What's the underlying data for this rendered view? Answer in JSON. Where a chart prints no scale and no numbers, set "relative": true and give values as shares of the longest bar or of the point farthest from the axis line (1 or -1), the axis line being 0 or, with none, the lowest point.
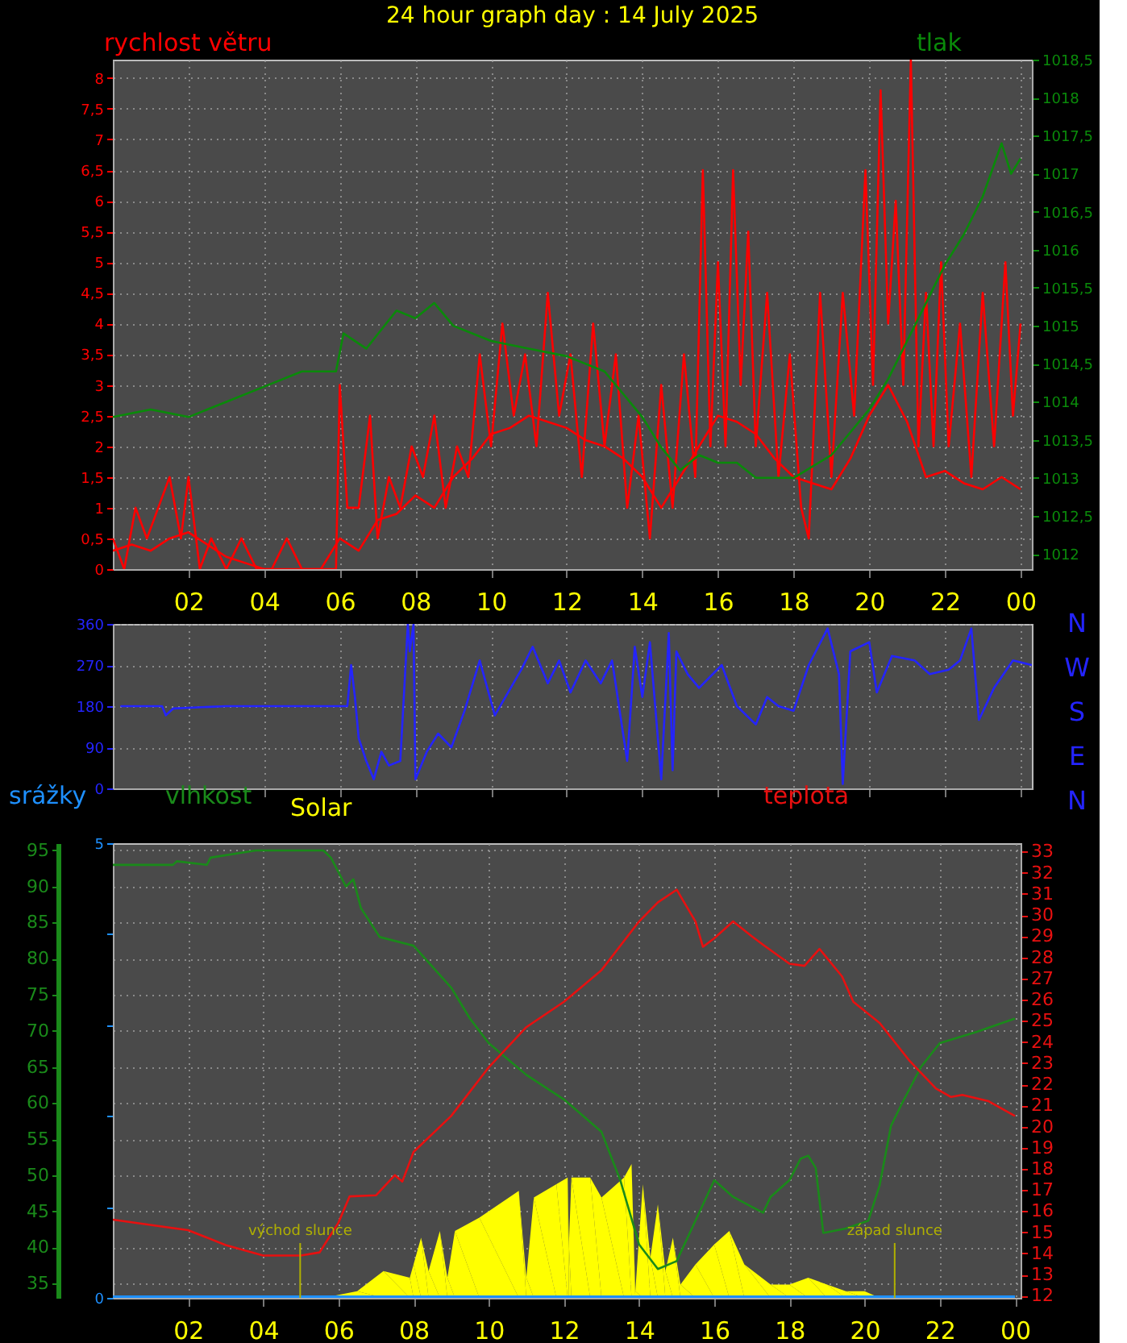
{
  "chart_data": [
    {
      "type": "line",
      "title": "24 hour graph day : 14 July 2025",
      "ylabel": "rychlost větru",
      "y2label": "tlak",
      "grid": true,
      "line_style": "solid",
      "xlim": [
        "2025-07-14T00:00",
        "2025-07-15T00:18"
      ],
      "xticks": [
        {
          "value": "2025-07-14T02:00",
          "label": "02"
        },
        {
          "value": "2025-07-14T04:00",
          "label": "04"
        },
        {
          "value": "2025-07-14T06:00",
          "label": "06"
        },
        {
          "value": "2025-07-14T08:00",
          "label": "08"
        },
        {
          "value": "2025-07-14T10:00",
          "label": "10"
        },
        {
          "value": "2025-07-14T12:00",
          "label": "12"
        },
        {
          "value": "2025-07-14T14:00",
          "label": "14"
        },
        {
          "value": "2025-07-14T16:00",
          "label": "16"
        },
        {
          "value": "2025-07-14T18:00",
          "label": "18"
        },
        {
          "value": "2025-07-14T20:00",
          "label": "20"
        },
        {
          "value": "2025-07-14T22:00",
          "label": "22"
        },
        {
          "value": "2025-07-15T00:00",
          "label": "00"
        }
      ],
      "ylim": [
        0,
        8.3
      ],
      "yticks": [
        0,
        {
          "value": 0.5,
          "label": "0,5"
        },
        1,
        {
          "value": 1.5,
          "label": "1,5"
        },
        2,
        {
          "value": 2.5,
          "label": "2,5"
        },
        3,
        {
          "value": 3.5,
          "label": "3,5"
        },
        4,
        {
          "value": 4.5,
          "label": "4,5"
        },
        5,
        {
          "value": 5.5,
          "label": "5,5"
        },
        6,
        {
          "value": 6.5,
          "label": "6,5"
        },
        7,
        {
          "value": 7.5,
          "label": "7,5"
        },
        8
      ],
      "y2lim": [
        1011.8,
        1018.5
      ],
      "y2ticks": [
        1012,
        {
          "value": 1012.5,
          "label": "1012,5"
        },
        1013,
        {
          "value": 1013.5,
          "label": "1013,5"
        },
        1014,
        {
          "value": 1014.5,
          "label": "1014,5"
        },
        1015,
        {
          "value": 1015.5,
          "label": "1015,5"
        },
        1016,
        {
          "value": 1016.5,
          "label": "1016,5"
        },
        1017,
        {
          "value": 1017.5,
          "label": "1017,5"
        },
        1018,
        {
          "value": 1018.5,
          "label": "1018,5"
        }
      ],
      "series": [
        {
          "color": "#ff0000",
          "x": [
            "2025-07-14T00:00",
            "2025-07-14T00:18",
            "2025-07-14T00:36",
            "2025-07-14T00:54",
            "2025-07-14T01:12",
            "2025-07-14T01:30",
            "2025-07-14T01:48",
            "2025-07-14T02:00",
            "2025-07-14T02:18",
            "2025-07-14T02:36",
            "2025-07-14T03:00",
            "2025-07-14T03:24",
            "2025-07-14T03:48",
            "2025-07-14T04:12",
            "2025-07-14T04:36",
            "2025-07-14T05:00",
            "2025-07-14T05:30",
            "2025-07-14T05:54",
            "2025-07-14T06:00",
            "2025-07-14T06:12",
            "2025-07-14T06:30",
            "2025-07-14T06:48",
            "2025-07-14T07:00",
            "2025-07-14T07:18",
            "2025-07-14T07:36",
            "2025-07-14T07:54",
            "2025-07-14T08:12",
            "2025-07-14T08:30",
            "2025-07-14T08:48",
            "2025-07-14T09:06",
            "2025-07-14T09:24",
            "2025-07-14T09:42",
            "2025-07-14T10:00",
            "2025-07-14T10:18",
            "2025-07-14T10:36",
            "2025-07-14T10:54",
            "2025-07-14T11:12",
            "2025-07-14T11:30",
            "2025-07-14T11:48",
            "2025-07-14T12:06",
            "2025-07-14T12:24",
            "2025-07-14T12:42",
            "2025-07-14T13:00",
            "2025-07-14T13:18",
            "2025-07-14T13:36",
            "2025-07-14T13:54",
            "2025-07-14T14:12",
            "2025-07-14T14:30",
            "2025-07-14T14:48",
            "2025-07-14T15:06",
            "2025-07-14T15:24",
            "2025-07-14T15:36",
            "2025-07-14T15:48",
            "2025-07-14T16:00",
            "2025-07-14T16:12",
            "2025-07-14T16:24",
            "2025-07-14T16:36",
            "2025-07-14T16:48",
            "2025-07-14T17:00",
            "2025-07-14T17:18",
            "2025-07-14T17:36",
            "2025-07-14T17:54",
            "2025-07-14T18:12",
            "2025-07-14T18:24",
            "2025-07-14T18:42",
            "2025-07-14T19:00",
            "2025-07-14T19:18",
            "2025-07-14T19:36",
            "2025-07-14T19:54",
            "2025-07-14T20:06",
            "2025-07-14T20:18",
            "2025-07-14T20:30",
            "2025-07-14T20:42",
            "2025-07-14T20:54",
            "2025-07-14T21:06",
            "2025-07-14T21:18",
            "2025-07-14T21:30",
            "2025-07-14T21:42",
            "2025-07-14T21:54",
            "2025-07-14T22:06",
            "2025-07-14T22:24",
            "2025-07-14T22:42",
            "2025-07-14T23:00",
            "2025-07-14T23:18",
            "2025-07-14T23:36",
            "2025-07-14T23:48",
            "2025-07-15T00:00"
          ],
          "values": [
            0.5,
            0,
            1,
            0.5,
            1,
            1.5,
            0.5,
            1.5,
            0,
            0.5,
            0,
            0.5,
            0,
            0,
            0.5,
            0,
            0,
            0,
            3,
            1,
            1,
            2.5,
            0.5,
            1.5,
            1,
            2,
            1.5,
            2.5,
            1,
            2,
            1.5,
            3.5,
            2,
            4,
            2.5,
            3.5,
            2,
            4.5,
            2.5,
            3.5,
            1.5,
            4,
            2,
            3.5,
            1,
            2.5,
            0.5,
            3,
            1,
            3.5,
            1.5,
            6.5,
            2,
            5,
            2,
            6.5,
            3,
            5.5,
            2,
            4.5,
            1.5,
            3.5,
            1,
            0.5,
            4.5,
            1.5,
            4.5,
            2.5,
            6.5,
            3,
            7.8,
            4,
            6,
            3,
            8.3,
            2,
            4.5,
            2,
            5,
            2,
            4,
            1.5,
            4.5,
            2,
            5,
            2.5,
            4
          ]
        },
        {
          "color": "#ff0000",
          "x": [
            "2025-07-14T00:00",
            "2025-07-14T00:30",
            "2025-07-14T01:00",
            "2025-07-14T01:30",
            "2025-07-14T02:00",
            "2025-07-14T02:30",
            "2025-07-14T03:00",
            "2025-07-14T03:30",
            "2025-07-14T04:00",
            "2025-07-14T04:30",
            "2025-07-14T05:00",
            "2025-07-14T05:30",
            "2025-07-14T06:00",
            "2025-07-14T06:30",
            "2025-07-14T07:00",
            "2025-07-14T07:30",
            "2025-07-14T08:00",
            "2025-07-14T08:30",
            "2025-07-14T09:00",
            "2025-07-14T09:30",
            "2025-07-14T10:00",
            "2025-07-14T10:30",
            "2025-07-14T11:00",
            "2025-07-14T11:30",
            "2025-07-14T12:00",
            "2025-07-14T12:30",
            "2025-07-14T13:00",
            "2025-07-14T13:30",
            "2025-07-14T14:00",
            "2025-07-14T14:30",
            "2025-07-14T15:00",
            "2025-07-14T15:30",
            "2025-07-14T16:00",
            "2025-07-14T16:30",
            "2025-07-14T17:00",
            "2025-07-14T17:30",
            "2025-07-14T18:00",
            "2025-07-14T18:30",
            "2025-07-14T19:00",
            "2025-07-14T19:30",
            "2025-07-14T20:00",
            "2025-07-14T20:30",
            "2025-07-14T21:00",
            "2025-07-14T21:30",
            "2025-07-14T22:00",
            "2025-07-14T22:30",
            "2025-07-14T23:00",
            "2025-07-14T23:30",
            "2025-07-15T00:00"
          ],
          "values": [
            0.3,
            0.4,
            0.3,
            0.5,
            0.6,
            0.4,
            0.2,
            0.1,
            0,
            0,
            0,
            0,
            0.5,
            0.3,
            0.8,
            0.9,
            1.2,
            1.0,
            1.5,
            1.8,
            2.2,
            2.3,
            2.5,
            2.4,
            2.3,
            2.1,
            2.0,
            1.8,
            1.5,
            1.0,
            1.5,
            2.0,
            2.5,
            2.4,
            2.2,
            1.8,
            1.5,
            1.4,
            1.3,
            1.8,
            2.5,
            3.0,
            2.4,
            1.5,
            1.6,
            1.4,
            1.3,
            1.5,
            1.3
          ]
        },
        {
          "color": "#0a8a0a",
          "axis": "y2",
          "x": [
            "2025-07-14T00:00",
            "2025-07-14T01:00",
            "2025-07-14T02:00",
            "2025-07-14T03:00",
            "2025-07-14T04:00",
            "2025-07-14T05:00",
            "2025-07-14T05:30",
            "2025-07-14T05:54",
            "2025-07-14T06:06",
            "2025-07-14T06:42",
            "2025-07-14T07:30",
            "2025-07-14T08:00",
            "2025-07-14T08:30",
            "2025-07-14T09:00",
            "2025-07-14T10:00",
            "2025-07-14T11:00",
            "2025-07-14T12:00",
            "2025-07-14T13:00",
            "2025-07-14T13:30",
            "2025-07-14T14:00",
            "2025-07-14T14:30",
            "2025-07-14T15:00",
            "2025-07-14T15:30",
            "2025-07-14T16:00",
            "2025-07-14T16:30",
            "2025-07-14T17:00",
            "2025-07-14T18:00",
            "2025-07-14T19:00",
            "2025-07-14T19:30",
            "2025-07-14T20:00",
            "2025-07-14T20:30",
            "2025-07-14T21:00",
            "2025-07-14T21:30",
            "2025-07-14T22:00",
            "2025-07-14T22:30",
            "2025-07-14T23:00",
            "2025-07-14T23:30",
            "2025-07-14T23:45",
            "2025-07-15T00:00"
          ],
          "values": [
            1013.8,
            1013.9,
            1013.8,
            1014.0,
            1014.2,
            1014.4,
            1014.4,
            1014.4,
            1014.9,
            1014.7,
            1015.2,
            1015.1,
            1015.3,
            1015.0,
            1014.8,
            1014.7,
            1014.6,
            1014.4,
            1014.1,
            1013.8,
            1013.4,
            1013.1,
            1013.3,
            1013.2,
            1013.2,
            1013.0,
            1013.0,
            1013.3,
            1013.6,
            1013.9,
            1014.3,
            1014.8,
            1015.3,
            1015.8,
            1016.2,
            1016.7,
            1017.4,
            1017.0,
            1017.2
          ]
        }
      ]
    },
    {
      "type": "line",
      "grid": true,
      "tick_labels": "y",
      "line_style": "solid",
      "annotations": [
        "N",
        "W",
        "S",
        "E",
        "N"
      ],
      "xlim": [
        "2025-07-14T00:00",
        "2025-07-15T00:18"
      ],
      "xticks": [
        {
          "value": "2025-07-14T02:00",
          "label": null
        },
        {
          "value": "2025-07-14T04:00",
          "label": null
        },
        {
          "value": "2025-07-14T06:00",
          "label": null
        },
        {
          "value": "2025-07-14T08:00",
          "label": null
        },
        {
          "value": "2025-07-14T10:00",
          "label": null
        },
        {
          "value": "2025-07-14T12:00",
          "label": null
        },
        {
          "value": "2025-07-14T14:00",
          "label": null
        },
        {
          "value": "2025-07-14T16:00",
          "label": null
        },
        {
          "value": "2025-07-14T18:00",
          "label": null
        },
        {
          "value": "2025-07-14T20:00",
          "label": null
        },
        {
          "value": "2025-07-14T22:00",
          "label": null
        },
        {
          "value": "2025-07-15T00:00",
          "label": null
        }
      ],
      "ylim": [
        0,
        360
      ],
      "yticks": [
        0,
        90,
        180,
        270,
        360
      ],
      "series": [
        {
          "color": "#2424ff",
          "x": [
            "2025-07-14T00:12",
            "2025-07-14T01:18",
            "2025-07-14T01:24",
            "2025-07-14T01:36",
            "2025-07-14T03:00",
            "2025-07-14T06:12",
            "2025-07-14T06:18",
            "2025-07-14T06:24",
            "2025-07-14T06:30",
            "2025-07-14T06:42",
            "2025-07-14T06:54",
            "2025-07-14T07:06",
            "2025-07-14T07:18",
            "2025-07-14T07:36",
            "2025-07-14T07:48",
            "2025-07-14T07:51",
            "2025-07-14T07:57",
            "2025-07-14T08:00",
            "2025-07-14T08:18",
            "2025-07-14T08:36",
            "2025-07-14T08:57",
            "2025-07-14T09:18",
            "2025-07-14T09:42",
            "2025-07-14T10:06",
            "2025-07-14T10:48",
            "2025-07-14T11:06",
            "2025-07-14T11:30",
            "2025-07-14T11:48",
            "2025-07-14T12:06",
            "2025-07-14T12:30",
            "2025-07-14T12:54",
            "2025-07-14T13:12",
            "2025-07-14T13:36",
            "2025-07-14T13:48",
            "2025-07-14T14:00",
            "2025-07-14T14:12",
            "2025-07-14T14:30",
            "2025-07-14T14:42",
            "2025-07-14T14:48",
            "2025-07-14T14:54",
            "2025-07-14T15:12",
            "2025-07-14T15:30",
            "2025-07-14T16:06",
            "2025-07-14T16:30",
            "2025-07-14T17:00",
            "2025-07-14T17:18",
            "2025-07-14T17:36",
            "2025-07-14T18:00",
            "2025-07-14T18:24",
            "2025-07-14T18:54",
            "2025-07-14T19:12",
            "2025-07-14T19:18",
            "2025-07-14T19:30",
            "2025-07-14T20:00",
            "2025-07-14T20:12",
            "2025-07-14T20:36",
            "2025-07-14T21:12",
            "2025-07-14T21:36",
            "2025-07-14T22:06",
            "2025-07-14T22:24",
            "2025-07-14T22:42",
            "2025-07-14T22:54",
            "2025-07-14T23:18",
            "2025-07-14T23:48",
            "2025-07-15T00:18"
          ],
          "values": [
            180,
            180,
            160,
            175,
            180,
            180,
            270,
            200,
            110,
            60,
            20,
            80,
            50,
            60,
            360,
            300,
            360,
            20,
            80,
            120,
            90,
            170,
            280,
            160,
            260,
            310,
            230,
            280,
            210,
            280,
            230,
            280,
            60,
            310,
            200,
            320,
            20,
            340,
            40,
            300,
            250,
            220,
            270,
            180,
            140,
            200,
            180,
            170,
            270,
            350,
            250,
            10,
            300,
            320,
            210,
            290,
            280,
            250,
            260,
            280,
            350,
            150,
            220,
            280,
            270
          ]
        }
      ]
    },
    {
      "type": "line",
      "grid": true,
      "line_style": "solid",
      "ylabel": "vlhkost",
      "y2label": "teplota",
      "y3label": "srážky",
      "xlim": [
        "2025-07-14T00:00",
        "2025-07-15T00:09"
      ],
      "xticks": [
        {
          "value": "2025-07-14T02:00",
          "label": "02"
        },
        {
          "value": "2025-07-14T04:00",
          "label": "04"
        },
        {
          "value": "2025-07-14T06:00",
          "label": "06"
        },
        {
          "value": "2025-07-14T08:00",
          "label": "08"
        },
        {
          "value": "2025-07-14T10:00",
          "label": "10"
        },
        {
          "value": "2025-07-14T12:00",
          "label": "12"
        },
        {
          "value": "2025-07-14T14:00",
          "label": "14"
        },
        {
          "value": "2025-07-14T16:00",
          "label": "16"
        },
        {
          "value": "2025-07-14T18:00",
          "label": "18"
        },
        {
          "value": "2025-07-14T20:00",
          "label": "20"
        },
        {
          "value": "2025-07-14T22:00",
          "label": "22"
        },
        {
          "value": "2025-07-15T00:00",
          "label": "00"
        }
      ],
      "ylim": [
        33,
        96
      ],
      "yticks": [
        35,
        40,
        45,
        50,
        55,
        60,
        65,
        70,
        75,
        80,
        85,
        90,
        95
      ],
      "y2lim": [
        11.9,
        33.4
      ],
      "y2ticks": [
        12,
        13,
        14,
        15,
        16,
        17,
        18,
        19,
        20,
        21,
        22,
        23,
        24,
        25,
        26,
        27,
        28,
        29,
        30,
        31,
        32,
        33
      ],
      "y3lim": [
        0,
        5
      ],
      "y3ticks": [
        0,
        {
          "value": 1,
          "label": null
        },
        {
          "value": 2,
          "label": null
        },
        {
          "value": 3,
          "label": null
        },
        {
          "value": 4,
          "label": null
        },
        5
      ],
      "ref_lines": [
        {
          "axis": "x",
          "value": "2025-07-14T04:59",
          "label": "východ slunce",
          "color": "#b0b000"
        },
        {
          "axis": "x",
          "value": "2025-07-14T20:48",
          "label": "západ slunce",
          "color": "#b0b000"
        }
      ],
      "series": [
        {
          "color": "#1a8a1a",
          "x": [
            "2025-07-14T00:00",
            "2025-07-14T01:36",
            "2025-07-14T01:42",
            "2025-07-14T02:30",
            "2025-07-14T02:36",
            "2025-07-14T03:48",
            "2025-07-14T05:36",
            "2025-07-14T05:48",
            "2025-07-14T06:12",
            "2025-07-14T06:24",
            "2025-07-14T06:36",
            "2025-07-14T07:06",
            "2025-07-14T08:00",
            "2025-07-14T09:00",
            "2025-07-14T09:30",
            "2025-07-14T10:00",
            "2025-07-14T11:00",
            "2025-07-14T12:00",
            "2025-07-14T13:00",
            "2025-07-14T13:30",
            "2025-07-14T14:00",
            "2025-07-14T14:30",
            "2025-07-14T15:00",
            "2025-07-14T15:30",
            "2025-07-14T16:00",
            "2025-07-14T16:30",
            "2025-07-14T17:00",
            "2025-07-14T17:18",
            "2025-07-14T17:30",
            "2025-07-14T18:00",
            "2025-07-14T18:18",
            "2025-07-14T18:30",
            "2025-07-14T18:42",
            "2025-07-14T18:54",
            "2025-07-14T19:30",
            "2025-07-14T20:06",
            "2025-07-14T20:24",
            "2025-07-14T20:42",
            "2025-07-14T21:00",
            "2025-07-14T21:30",
            "2025-07-14T22:00",
            "2025-07-14T23:00",
            "2025-07-15T00:00"
          ],
          "values": [
            93,
            93,
            93.5,
            93,
            94,
            95,
            95,
            94,
            90,
            91,
            87,
            83,
            81.8,
            76,
            71.7,
            68.3,
            63.9,
            60.5,
            56,
            49.3,
            40.4,
            37,
            38.1,
            43.7,
            49.3,
            47,
            45.6,
            44.8,
            47,
            49.3,
            52.3,
            52.7,
            51,
            42,
            42.6,
            43.7,
            48.6,
            56.8,
            60,
            65,
            68.3,
            69.9,
            71.7
          ]
        },
        {
          "color": "#e81010",
          "axis": "y2",
          "x": [
            "2025-07-14T00:00",
            "2025-07-14T02:00",
            "2025-07-14T03:00",
            "2025-07-14T04:00",
            "2025-07-14T05:00",
            "2025-07-14T05:30",
            "2025-07-14T06:00",
            "2025-07-14T06:18",
            "2025-07-14T07:00",
            "2025-07-14T07:30",
            "2025-07-14T07:42",
            "2025-07-14T08:00",
            "2025-07-14T09:00",
            "2025-07-14T10:00",
            "2025-07-14T11:00",
            "2025-07-14T12:00",
            "2025-07-14T13:00",
            "2025-07-14T14:00",
            "2025-07-14T14:30",
            "2025-07-14T15:00",
            "2025-07-14T15:30",
            "2025-07-14T15:42",
            "2025-07-14T16:00",
            "2025-07-14T16:30",
            "2025-07-14T17:00",
            "2025-07-14T17:18",
            "2025-07-14T18:00",
            "2025-07-14T18:24",
            "2025-07-14T18:48",
            "2025-07-14T19:24",
            "2025-07-14T19:42",
            "2025-07-14T20:24",
            "2025-07-14T21:12",
            "2025-07-14T21:54",
            "2025-07-14T22:18",
            "2025-07-14T22:36",
            "2025-07-14T23:18",
            "2025-07-15T00:00"
          ],
          "values": [
            15.6,
            15.1,
            14.4,
            13.9,
            13.9,
            14.05,
            15.45,
            16.7,
            16.75,
            17.7,
            17.4,
            18.8,
            20.5,
            22.8,
            24.7,
            25.9,
            27.4,
            29.7,
            30.6,
            31.2,
            29.7,
            28.5,
            28.9,
            29.7,
            29,
            28.6,
            27.7,
            27.6,
            28.4,
            27.1,
            25.9,
            24.9,
            23.1,
            21.8,
            21.4,
            21.5,
            21.2,
            20.5
          ]
        },
        {
          "color": "#1e90ff",
          "axis": "y3",
          "x": [
            "2025-07-14T00:00",
            "2025-07-15T00:00"
          ],
          "values": [
            0,
            0
          ]
        }
      ]
    },
    {
      "type": "area",
      "relative": true,
      "xlim": [
        "2025-07-14T00:00",
        "2025-07-15T00:09"
      ],
      "series": [
        {
          "name": "Solar",
          "color": "#ffff00",
          "x": [
            "2025-07-14T05:36",
            "2025-07-14T06:30",
            "2025-07-14T07:12",
            "2025-07-14T07:54",
            "2025-07-14T08:00",
            "2025-07-14T08:12",
            "2025-07-14T08:24",
            "2025-07-14T08:42",
            "2025-07-14T08:54",
            "2025-07-14T09:06",
            "2025-07-14T09:45",
            "2025-07-14T10:48",
            "2025-07-14T11:00",
            "2025-07-14T11:12",
            "2025-07-14T11:48",
            "2025-07-14T12:06",
            "2025-07-14T12:08",
            "2025-07-14T12:12",
            "2025-07-14T12:42",
            "2025-07-14T13:00",
            "2025-07-14T13:36",
            "2025-07-14T13:48",
            "2025-07-14T13:54",
            "2025-07-14T14:06",
            "2025-07-14T14:18",
            "2025-07-14T14:30",
            "2025-07-14T14:42",
            "2025-07-14T14:54",
            "2025-07-14T15:06",
            "2025-07-14T15:30",
            "2025-07-14T16:00",
            "2025-07-14T16:24",
            "2025-07-14T16:48",
            "2025-07-14T17:30",
            "2025-07-14T18:00",
            "2025-07-14T18:30",
            "2025-07-14T19:00",
            "2025-07-14T19:30",
            "2025-07-14T20:00",
            "2025-07-14T20:24"
          ],
          "values": [
            0,
            0.05,
            0.2,
            0.15,
            0.25,
            0.45,
            0.2,
            0.5,
            0.15,
            0.5,
            0.6,
            0.8,
            0.15,
            0.75,
            0.85,
            0.9,
            0.4,
            0.9,
            0.9,
            0.75,
            0.9,
            1.0,
            0.05,
            0.85,
            0.3,
            0.7,
            0.2,
            0.45,
            0.1,
            0.25,
            0.4,
            0.5,
            0.25,
            0.1,
            0.1,
            0.15,
            0.1,
            0.05,
            0.05,
            0
          ]
        }
      ]
    }
  ]
}
